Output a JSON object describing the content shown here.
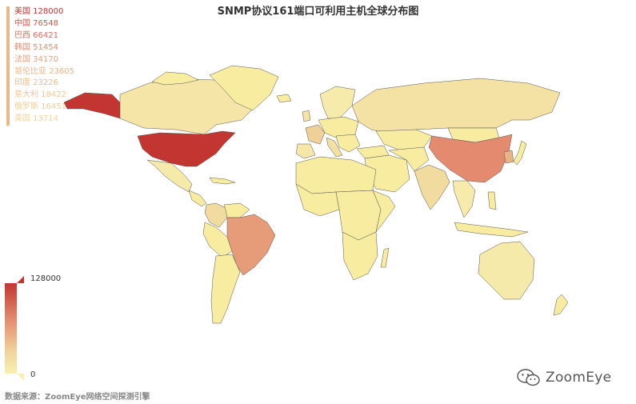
{
  "title": "SNMP协议161端口可利用主机全球分布图",
  "legend": {
    "items": [
      "美国 128000",
      "中国 76548",
      "巴西 66421",
      "韩国 51454",
      "法国 34170",
      "哥伦比亚 23605",
      "印度 23226",
      "意大利 18422",
      "俄罗斯 16451",
      "英国 13714"
    ],
    "colors": [
      "#c23531",
      "#d2574a",
      "#d96f5d",
      "#e38a6e",
      "#e9a27c",
      "#edb585",
      "#eebd89",
      "#f0c88f",
      "#f1cd93",
      "#f3d598"
    ]
  },
  "map_data": [
    {
      "country": "美国",
      "value": 128000
    },
    {
      "country": "中国",
      "value": 76548
    },
    {
      "country": "巴西",
      "value": 66421
    },
    {
      "country": "韩国",
      "value": 51454
    },
    {
      "country": "法国",
      "value": 34170
    },
    {
      "country": "哥伦比亚",
      "value": 23605
    },
    {
      "country": "印度",
      "value": 23226
    },
    {
      "country": "意大利",
      "value": 18422
    },
    {
      "country": "俄罗斯",
      "value": 16451
    },
    {
      "country": "英国",
      "value": 13714
    }
  ],
  "visual_map": {
    "max": "128000",
    "min": "0",
    "color_high": "#c23531",
    "color_low": "#f8f0ae"
  },
  "colors": {
    "default_land": "#f7ec9f",
    "no_data": "#e6e6e6",
    "border": "#555555"
  },
  "source": "数据来源：ZoomEye网络空间探测引擎",
  "brand": {
    "name": "ZoomEye",
    "icon": "wechat-icon"
  }
}
